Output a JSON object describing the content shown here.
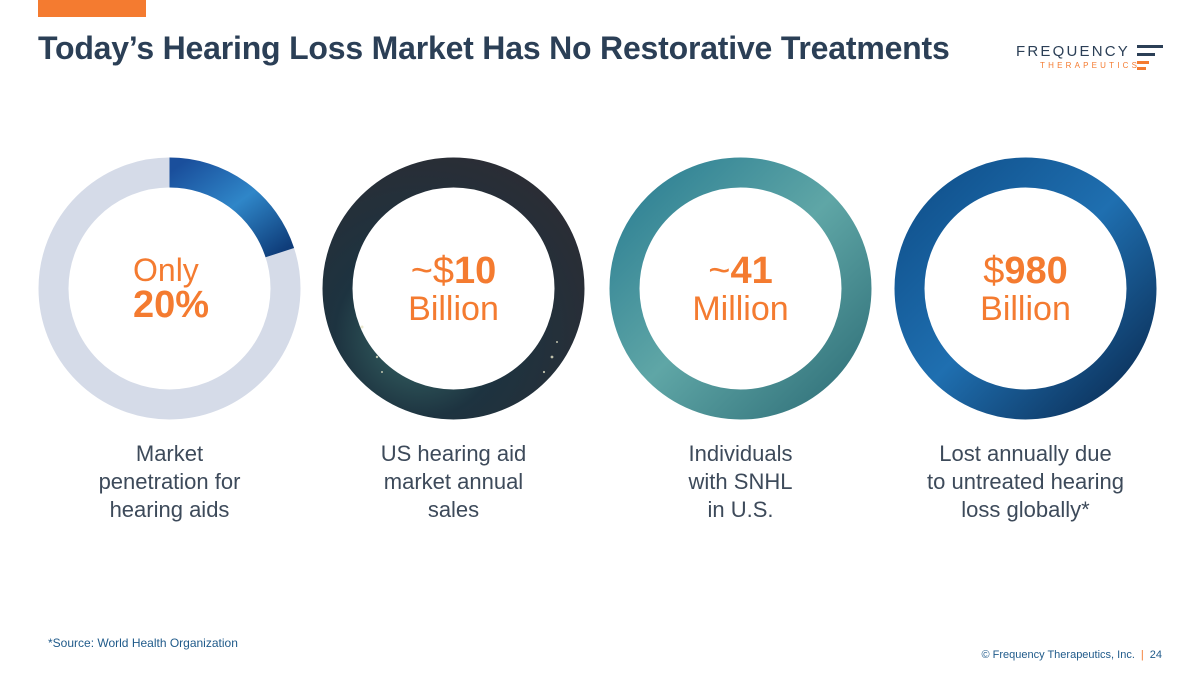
{
  "slide": {
    "title": "Today’s Hearing Loss Market Has No Restorative Treatments",
    "page_number": "24",
    "copyright": "© Frequency Therapeutics, Inc.",
    "separator": "|",
    "source_note": "*Source: World Health Organization"
  },
  "logo": {
    "word": "FREQUENCY",
    "sub": "THERAPEUTICS"
  },
  "colors": {
    "accent": "#f47b30",
    "title": "#2b3f56",
    "ring_grey": "#d5dbe8",
    "footer": "#1f5a8a"
  },
  "stats": [
    {
      "line1": "Only",
      "line2": "20%",
      "caption": [
        "Market",
        "penetration for",
        "hearing aids"
      ],
      "fraction": 0.2
    },
    {
      "prefix": "~$",
      "value": "10",
      "unit": "Billion",
      "caption": [
        "US hearing aid",
        "market annual",
        "sales"
      ]
    },
    {
      "prefix": "~",
      "value": "41",
      "unit": "Million",
      "caption": [
        "Individuals",
        "with SNHL",
        "in U.S."
      ]
    },
    {
      "prefix": "$",
      "value": "980",
      "unit": "Billion",
      "caption": [
        "Lost annually due",
        "to untreated hearing",
        "loss globally*"
      ]
    }
  ]
}
